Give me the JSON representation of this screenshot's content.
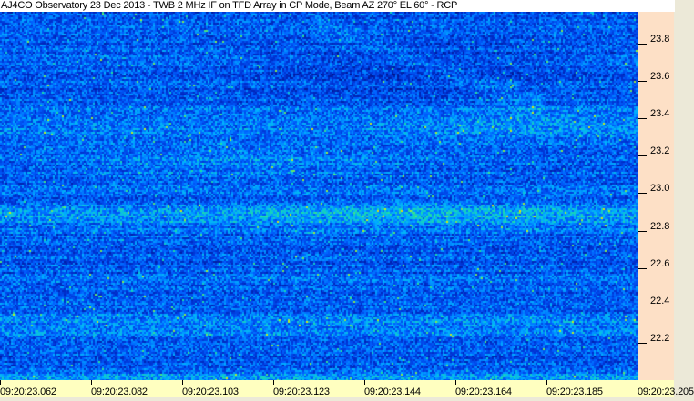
{
  "title": "AJ4CO Observatory 23 Dec 2013 - TWB 2 MHz IF on TFD Array in CP Mode, Beam AZ 270° EL 60° - RCP",
  "chart_data": {
    "type": "heatmap",
    "title": "AJ4CO Observatory 23 Dec 2013 - TWB 2 MHz IF on TFD Array in CP Mode, Beam AZ 270° EL 60° - RCP",
    "xlabel": "",
    "ylabel": "",
    "x_ticks": [
      "09:20:23.062",
      "09:20:23.082",
      "09:20:23.103",
      "09:20:23.123",
      "09:20:23.144",
      "09:20:23.164",
      "09:20:23.185",
      "09:20:23.205"
    ],
    "y_ticks": [
      23.8,
      23.6,
      23.4,
      23.2,
      23.0,
      22.8,
      22.6,
      22.4,
      22.2
    ],
    "ylim": [
      22.0,
      23.97
    ],
    "grid": false,
    "colormap": [
      "#001080",
      "#0030d0",
      "#0060ff",
      "#00b0ff",
      "#20e0a0",
      "#c0f020",
      "#ffd000"
    ],
    "colors": {
      "title_bg": "#ffffff",
      "y_axis_bg": "#fde0c6",
      "x_axis_bg": "#ffffc0"
    }
  }
}
